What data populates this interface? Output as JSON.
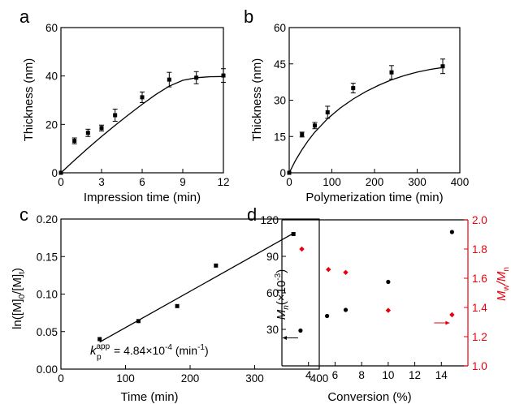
{
  "colors": {
    "black": "#000000",
    "red": "#e8000b"
  },
  "chart_data": [
    {
      "panel": "a",
      "type": "scatter",
      "xlabel": "Impression time (min)",
      "ylabel": "Thickness (nm)",
      "xlim": [
        0,
        12
      ],
      "ylim": [
        0,
        60
      ],
      "xticks": [
        0,
        3,
        6,
        9,
        12
      ],
      "yticks": [
        0,
        20,
        40,
        60
      ],
      "points": [
        {
          "x": 0,
          "y": 0,
          "err": 0
        },
        {
          "x": 1,
          "y": 13.2,
          "err": 1.2
        },
        {
          "x": 2,
          "y": 16.5,
          "err": 1.5
        },
        {
          "x": 3,
          "y": 18.5,
          "err": 1.2
        },
        {
          "x": 4,
          "y": 23.8,
          "err": 2.5
        },
        {
          "x": 6,
          "y": 31.2,
          "err": 2.2
        },
        {
          "x": 8,
          "y": 38.5,
          "err": 3.0
        },
        {
          "x": 10,
          "y": 39.3,
          "err": 2.5
        },
        {
          "x": 12,
          "y": 40.2,
          "err": 2.8
        }
      ],
      "fit": [
        [
          0,
          0
        ],
        [
          1,
          5.2
        ],
        [
          2,
          10.2
        ],
        [
          3,
          15.0
        ],
        [
          4,
          19.6
        ],
        [
          5,
          24.0
        ],
        [
          6,
          28.3
        ],
        [
          7,
          32.3
        ],
        [
          8,
          35.8
        ],
        [
          9,
          38.2
        ],
        [
          10,
          39.3
        ],
        [
          11,
          39.7
        ],
        [
          12,
          39.8
        ]
      ]
    },
    {
      "panel": "b",
      "type": "scatter",
      "xlabel": "Polymerization time (min)",
      "ylabel": "Thickness (nm)",
      "xlim": [
        0,
        400
      ],
      "ylim": [
        0,
        60
      ],
      "xticks": [
        0,
        100,
        200,
        300,
        400
      ],
      "yticks": [
        0,
        15,
        30,
        45,
        60
      ],
      "points": [
        {
          "x": 0,
          "y": 0,
          "err": 0
        },
        {
          "x": 30,
          "y": 15.8,
          "err": 1.0
        },
        {
          "x": 60,
          "y": 19.5,
          "err": 1.3
        },
        {
          "x": 90,
          "y": 25.0,
          "err": 2.5
        },
        {
          "x": 150,
          "y": 35.0,
          "err": 2.0
        },
        {
          "x": 240,
          "y": 41.5,
          "err": 2.8
        },
        {
          "x": 360,
          "y": 44.0,
          "err": 3.0
        }
      ],
      "fit": [
        [
          0,
          0
        ],
        [
          15,
          5.2
        ],
        [
          30,
          9.6
        ],
        [
          45,
          13.4
        ],
        [
          60,
          16.8
        ],
        [
          90,
          22.4
        ],
        [
          120,
          26.8
        ],
        [
          150,
          30.5
        ],
        [
          180,
          33.6
        ],
        [
          210,
          36.2
        ],
        [
          240,
          38.4
        ],
        [
          270,
          40.2
        ],
        [
          300,
          41.6
        ],
        [
          330,
          42.7
        ],
        [
          360,
          43.5
        ]
      ]
    },
    {
      "panel": "c",
      "type": "scatter",
      "xlabel": "Time (min)",
      "ylabel_parts": [
        "ln([M]",
        "0",
        "/[M]",
        "t",
        ")"
      ],
      "xlim": [
        0,
        400
      ],
      "ylim": [
        0,
        0.2
      ],
      "xticks": [
        0,
        100,
        200,
        300,
        400
      ],
      "yticks": [
        0.0,
        0.05,
        0.1,
        0.15,
        0.2
      ],
      "ytick_labels": [
        "0.00",
        "0.05",
        "0.10",
        "0.15",
        "0.20"
      ],
      "points": [
        {
          "x": 60,
          "y": 0.04
        },
        {
          "x": 120,
          "y": 0.064
        },
        {
          "x": 180,
          "y": 0.084
        },
        {
          "x": 240,
          "y": 0.138
        },
        {
          "x": 360,
          "y": 0.18
        }
      ],
      "fit": [
        [
          60,
          0.036
        ],
        [
          360,
          0.181
        ]
      ],
      "annotation": {
        "k": "k",
        "sub": "p",
        "sup": "app",
        "value": "= 4.84×10",
        "exp": "-4",
        "unit": " (min",
        "unit_exp": "-1",
        "close": ")"
      }
    },
    {
      "panel": "d",
      "type": "scatter",
      "xlabel": "Conversion (%)",
      "ylabel_left_parts": [
        "M",
        "n",
        "(×10",
        "-3",
        ")"
      ],
      "ylabel_right_parts": [
        "M",
        "w",
        "/M",
        "n"
      ],
      "xlim": [
        2,
        16
      ],
      "ylim_left": [
        0,
        120
      ],
      "ylim_right": [
        1.0,
        2.0
      ],
      "xticks": [
        4,
        6,
        8,
        10,
        12,
        14
      ],
      "yticks_left": [
        30,
        60,
        90,
        120
      ],
      "yticks_right": [
        1.0,
        1.2,
        1.4,
        1.6,
        1.8,
        2.0
      ],
      "ytick_right_labels": [
        "1.0",
        "1.2",
        "1.4",
        "1.6",
        "1.8",
        "2.0"
      ],
      "series": [
        {
          "axis": "left",
          "color": "#000000",
          "marker": "circle",
          "points": [
            {
              "x": 3.4,
              "y": 29
            },
            {
              "x": 5.4,
              "y": 41
            },
            {
              "x": 6.8,
              "y": 46
            },
            {
              "x": 10.0,
              "y": 69
            },
            {
              "x": 14.8,
              "y": 110
            }
          ]
        },
        {
          "axis": "right",
          "color": "#e8000b",
          "marker": "diamond",
          "points": [
            {
              "x": 3.5,
              "y": 1.8
            },
            {
              "x": 5.5,
              "y": 1.66
            },
            {
              "x": 6.8,
              "y": 1.64
            },
            {
              "x": 10.0,
              "y": 1.38
            },
            {
              "x": 14.8,
              "y": 1.35
            }
          ]
        }
      ]
    }
  ],
  "panel_letters": [
    "a",
    "b",
    "c",
    "d"
  ]
}
